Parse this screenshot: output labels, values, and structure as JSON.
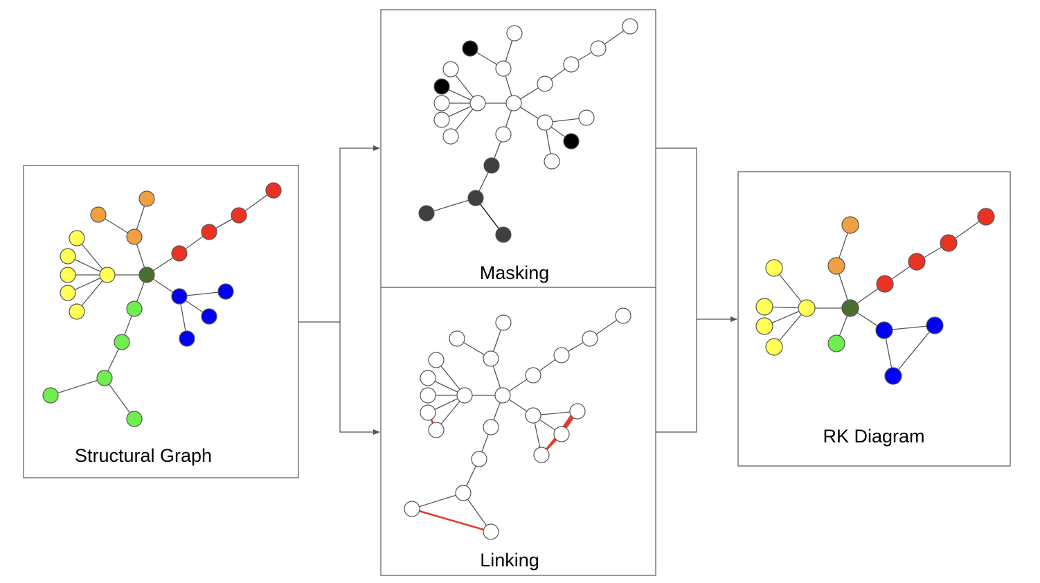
{
  "colors": {
    "yellow": "#ffff55",
    "orange": "#f0a040",
    "red": "#ea3323",
    "blue": "#0000f5",
    "green": "#70ee50",
    "darkgreen": "#4a6e2e",
    "black": "#000000",
    "darkgray": "#404040",
    "white": "#ffffff",
    "edge": "#555555",
    "redlink": "#e33b2c"
  },
  "panels": [
    {
      "id": "structural",
      "label": "Structural Graph",
      "nodes": [
        {
          "id": "s_center",
          "color": "darkgreen"
        },
        {
          "id": "s_y_hub",
          "color": "yellow"
        },
        {
          "id": "s_y1",
          "color": "yellow"
        },
        {
          "id": "s_y2",
          "color": "yellow"
        },
        {
          "id": "s_y3",
          "color": "yellow"
        },
        {
          "id": "s_y4",
          "color": "yellow"
        },
        {
          "id": "s_y5",
          "color": "yellow"
        },
        {
          "id": "s_o_hub",
          "color": "orange"
        },
        {
          "id": "s_o1",
          "color": "orange"
        },
        {
          "id": "s_o2",
          "color": "orange"
        },
        {
          "id": "s_r1",
          "color": "red"
        },
        {
          "id": "s_r2",
          "color": "red"
        },
        {
          "id": "s_r3",
          "color": "red"
        },
        {
          "id": "s_r4",
          "color": "red"
        },
        {
          "id": "s_b_hub",
          "color": "blue"
        },
        {
          "id": "s_b1",
          "color": "blue"
        },
        {
          "id": "s_b2",
          "color": "blue"
        },
        {
          "id": "s_b3",
          "color": "blue"
        },
        {
          "id": "s_g1",
          "color": "green"
        },
        {
          "id": "s_g2",
          "color": "green"
        },
        {
          "id": "s_g3",
          "color": "green"
        },
        {
          "id": "s_g4",
          "color": "green"
        },
        {
          "id": "s_g5",
          "color": "green"
        }
      ]
    },
    {
      "id": "masking",
      "label": "Masking",
      "masked_colors": [
        "black",
        "darkgray"
      ]
    },
    {
      "id": "linking",
      "label": "Linking",
      "link_color": "redlink"
    },
    {
      "id": "rk",
      "label": "RK Diagram"
    }
  ]
}
